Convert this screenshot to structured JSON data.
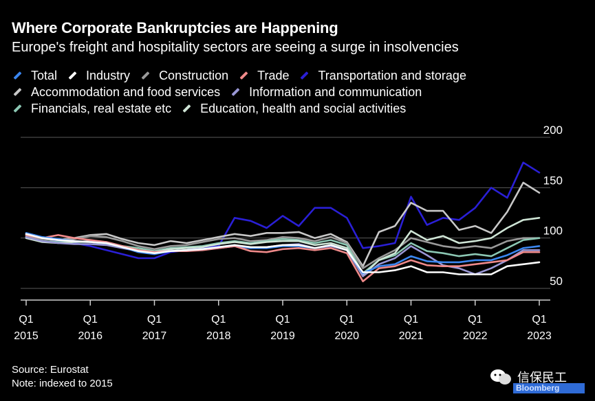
{
  "title": "Where Corporate Bankruptcies are Happening",
  "subtitle": "Europe's freight and hospitality sectors are seeing a surge in insolvencies",
  "source": "Source: Eurostat",
  "note": "Note: indexed to 2015",
  "watermark": {
    "text": "信保民工",
    "logo_text": "Bloomberg"
  },
  "chart_data": {
    "type": "line",
    "title": "Where Corporate Bankruptcies are Happening",
    "subtitle": "Europe's freight and hospitality sectors are seeing a surge in insolvencies",
    "xlabel": "",
    "ylabel": "",
    "x": [
      "2015Q1",
      "2015Q2",
      "2015Q3",
      "2015Q4",
      "2016Q1",
      "2016Q2",
      "2016Q3",
      "2016Q4",
      "2017Q1",
      "2017Q2",
      "2017Q3",
      "2017Q4",
      "2018Q1",
      "2018Q2",
      "2018Q3",
      "2018Q4",
      "2019Q1",
      "2019Q2",
      "2019Q3",
      "2019Q4",
      "2020Q1",
      "2020Q2",
      "2020Q3",
      "2020Q4",
      "2021Q1",
      "2021Q2",
      "2021Q3",
      "2021Q4",
      "2022Q1",
      "2022Q2",
      "2022Q3",
      "2022Q4",
      "2023Q1"
    ],
    "x_ticks": [
      {
        "index": 0,
        "line1": "Q1",
        "line2": "2015"
      },
      {
        "index": 4,
        "line1": "Q1",
        "line2": "2016"
      },
      {
        "index": 8,
        "line1": "Q1",
        "line2": "2017"
      },
      {
        "index": 12,
        "line1": "Q1",
        "line2": "2018"
      },
      {
        "index": 16,
        "line1": "Q1",
        "line2": "2019"
      },
      {
        "index": 20,
        "line1": "Q1",
        "line2": "2020"
      },
      {
        "index": 24,
        "line1": "Q1",
        "line2": "2021"
      },
      {
        "index": 28,
        "line1": "Q1",
        "line2": "2022"
      },
      {
        "index": 32,
        "line1": "Q1",
        "line2": "2023"
      }
    ],
    "y_ticks": [
      200,
      150,
      100,
      50
    ],
    "ylim": [
      40,
      200
    ],
    "grid": true,
    "legend_position": "top",
    "series": [
      {
        "name": "Transportation and storage",
        "color": "#2a1fd6",
        "values": [
          103,
          100,
          97,
          95,
          92,
          88,
          84,
          80,
          80,
          86,
          88,
          90,
          92,
          120,
          117,
          110,
          122,
          112,
          130,
          130,
          120,
          90,
          92,
          95,
          141,
          113,
          120,
          118,
          130,
          150,
          140,
          175,
          165
        ]
      },
      {
        "name": "Accommodation and food services",
        "color": "#c8c8c8",
        "values": [
          104,
          99,
          98,
          100,
          103,
          104,
          99,
          95,
          93,
          97,
          95,
          98,
          101,
          104,
          102,
          105,
          105,
          106,
          100,
          104,
          96,
          72,
          106,
          112,
          135,
          127,
          127,
          108,
          112,
          105,
          126,
          155,
          145
        ]
      },
      {
        "name": "Construction",
        "color": "#9a9a9a",
        "values": [
          102,
          99,
          98,
          99,
          102,
          101,
          97,
          92,
          89,
          92,
          93,
          96,
          99,
          100,
          97,
          98,
          101,
          100,
          97,
          101,
          95,
          70,
          80,
          88,
          100,
          96,
          92,
          90,
          92,
          90,
          97,
          100,
          100
        ]
      },
      {
        "name": "Financials, real estate etc",
        "color": "#8cc8b4",
        "values": [
          101,
          97,
          96,
          96,
          96,
          94,
          92,
          90,
          87,
          90,
          91,
          92,
          95,
          97,
          95,
          97,
          99,
          98,
          95,
          98,
          93,
          65,
          78,
          83,
          95,
          87,
          85,
          82,
          84,
          82,
          90,
          98,
          100
        ]
      },
      {
        "name": "Education, health and social activities",
        "color": "#cfe5d6",
        "values": [
          100,
          96,
          95,
          96,
          97,
          96,
          92,
          88,
          86,
          89,
          90,
          91,
          94,
          96,
          94,
          96,
          97,
          97,
          93,
          95,
          90,
          63,
          78,
          85,
          107,
          98,
          102,
          95,
          97,
          100,
          110,
          118,
          120
        ]
      },
      {
        "name": "Information and communication",
        "color": "#9a98d6",
        "values": [
          101,
          97,
          95,
          94,
          94,
          93,
          90,
          87,
          86,
          87,
          88,
          89,
          90,
          92,
          90,
          91,
          93,
          94,
          90,
          92,
          88,
          62,
          74,
          80,
          92,
          83,
          73,
          70,
          64,
          70,
          78,
          88,
          88
        ]
      },
      {
        "name": "Trade",
        "color": "#f08a8a",
        "values": [
          103,
          100,
          103,
          100,
          98,
          96,
          92,
          88,
          86,
          87,
          87,
          88,
          90,
          92,
          87,
          86,
          89,
          90,
          88,
          90,
          85,
          57,
          70,
          72,
          78,
          73,
          72,
          72,
          74,
          76,
          78,
          86,
          86
        ]
      },
      {
        "name": "Total",
        "color": "#3a86f0",
        "values": [
          105,
          101,
          99,
          97,
          96,
          95,
          91,
          86,
          84,
          87,
          88,
          89,
          91,
          93,
          90,
          90,
          92,
          92,
          90,
          93,
          88,
          65,
          72,
          74,
          82,
          77,
          76,
          76,
          78,
          78,
          83,
          90,
          92
        ]
      },
      {
        "name": "Industry",
        "color": "#ffffff",
        "values": [
          104,
          100,
          98,
          97,
          96,
          95,
          91,
          87,
          85,
          87,
          88,
          89,
          91,
          93,
          91,
          91,
          93,
          93,
          90,
          93,
          88,
          66,
          66,
          68,
          72,
          66,
          66,
          64,
          64,
          64,
          72,
          74,
          76
        ]
      }
    ],
    "legend_rows": [
      [
        "Total",
        "Industry",
        "Construction",
        "Trade",
        "Transportation and storage"
      ],
      [
        "Accommodation and food services",
        "Information and communication"
      ],
      [
        "Financials, real estate etc",
        "Education, health and social activities"
      ]
    ]
  }
}
